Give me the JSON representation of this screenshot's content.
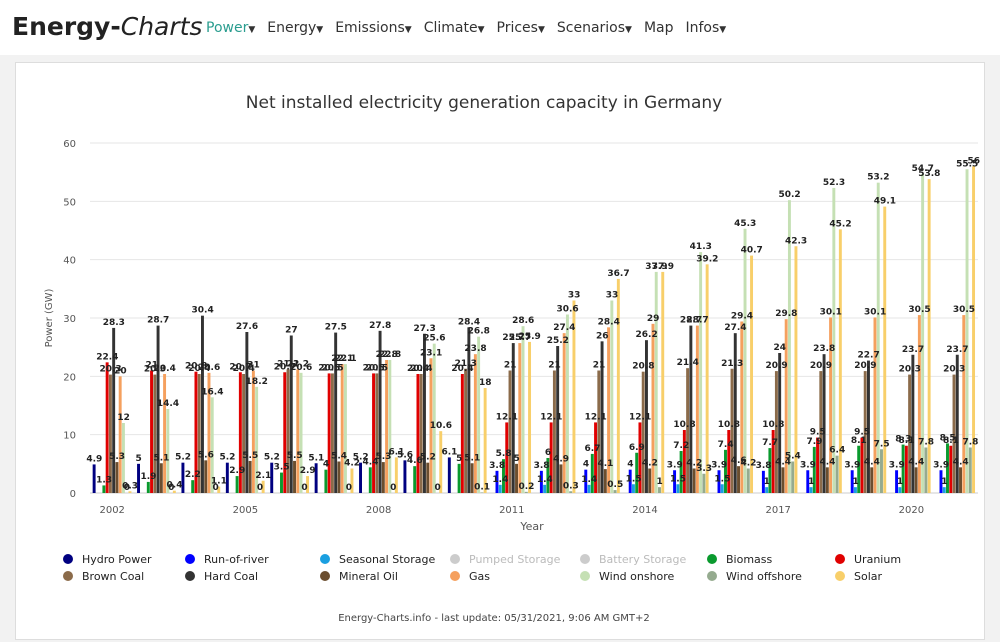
{
  "header": {
    "brand_bold": "Energy-",
    "brand_italic": "Charts",
    "menu": [
      "Power",
      "Energy",
      "Emissions",
      "Climate",
      "Prices",
      "Scenarios",
      "Map",
      "Infos"
    ]
  },
  "chart_data": {
    "type": "bar",
    "title": "Net installed electricity generation capacity in Germany",
    "ylabel": "Power (GW)",
    "xlabel": "Year",
    "footer": "Energy-Charts.info - last update: 05/31/2021, 9:06 AM GMT+2",
    "categories": [
      "2002",
      null,
      null,
      "2005",
      null,
      null,
      "2008",
      null,
      null,
      "2011",
      null,
      null,
      "2014",
      null,
      null,
      "2017",
      null,
      null,
      "2020",
      null
    ],
    "ylim": [
      0,
      60
    ],
    "yticks": [
      0,
      10,
      20,
      30,
      40,
      50,
      60
    ],
    "grid": true,
    "series": [
      {
        "name": "Hydro Power",
        "color": "#000080",
        "values": [
          4.9,
          5.0,
          5.2,
          5.2,
          5.2,
          5.1,
          5.2,
          5.6,
          6.1,
          null,
          null,
          null,
          null,
          null,
          null,
          null,
          null,
          null,
          null,
          null
        ]
      },
      {
        "name": "Run-of-river",
        "color": "#0000ff",
        "values": [
          null,
          null,
          null,
          null,
          null,
          null,
          null,
          null,
          null,
          3.8,
          3.8,
          4.0,
          4.0,
          3.9,
          3.9,
          3.8,
          3.9,
          3.9,
          3.9,
          3.9
        ]
      },
      {
        "name": "Seasonal Storage",
        "color": "#1a9fe0",
        "values": [
          null,
          null,
          null,
          null,
          null,
          null,
          null,
          null,
          null,
          1.4,
          1.4,
          1.4,
          1.5,
          1.5,
          1.5,
          1.0,
          1.0,
          1.0,
          1.0,
          1.0
        ]
      },
      {
        "name": "Pumped Storage",
        "color": "#cccccc",
        "visible": false
      },
      {
        "name": "Battery Storage",
        "color": "#cccccc",
        "visible": false
      },
      {
        "name": "Biomass",
        "color": "#0a9a2e",
        "values": [
          1.3,
          1.9,
          2.2,
          2.9,
          3.5,
          4.0,
          4.4,
          4.6,
          5.0,
          5.8,
          6.0,
          6.7,
          6.9,
          7.2,
          7.4,
          7.7,
          7.9,
          8.1,
          8.3,
          8.5
        ]
      },
      {
        "name": "Uranium",
        "color": "#e00000",
        "values": [
          22.4,
          21.0,
          20.8,
          20.7,
          20.7,
          20.5,
          20.5,
          20.4,
          20.4,
          12.1,
          12.1,
          12.1,
          12.1,
          10.8,
          10.8,
          10.8,
          9.5,
          9.5,
          8.1,
          8.1
        ]
      },
      {
        "name": "Brown Coal",
        "color": "#8b6b4a",
        "values": [
          20.3,
          20.3,
          20.4,
          20.4,
          21.2,
          20.5,
          20.5,
          20.4,
          21.3,
          21.0,
          21.0,
          21.0,
          20.8,
          21.4,
          21.3,
          20.9,
          20.9,
          20.9,
          20.3,
          20.3
        ]
      },
      {
        "name": "Hard Coal",
        "color": "#333333",
        "values": [
          28.3,
          28.7,
          30.4,
          27.6,
          27.0,
          27.5,
          27.8,
          27.3,
          28.4,
          25.7,
          25.2,
          26.0,
          26.2,
          28.7,
          27.4,
          24.0,
          23.8,
          22.7,
          23.7,
          23.7
        ]
      },
      {
        "name": "Mineral Oil",
        "color": "#6b4e2f",
        "values": [
          5.3,
          5.1,
          5.6,
          5.5,
          5.5,
          5.4,
          5.3,
          5.2,
          5.1,
          5.0,
          4.9,
          4.1,
          4.2,
          4.2,
          4.6,
          4.4,
          4.4,
          4.4,
          4.4,
          4.4
        ]
      },
      {
        "name": "Gas",
        "color": "#f5a05e",
        "values": [
          20.0,
          20.4,
          20.6,
          21.0,
          21.2,
          22.1,
          22.8,
          23.1,
          23.8,
          25.7,
          27.4,
          28.4,
          29.0,
          28.7,
          29.4,
          29.8,
          30.1,
          30.1,
          30.5,
          30.5
        ]
      },
      {
        "name": "Wind onshore",
        "color": "#c5e0b4",
        "values": [
          12.0,
          14.4,
          16.4,
          18.2,
          20.6,
          22.1,
          22.8,
          25.6,
          26.8,
          28.6,
          30.6,
          33.0,
          37.9,
          41.3,
          45.3,
          50.2,
          52.3,
          53.2,
          54.7,
          55.5
        ]
      },
      {
        "name": "Wind offshore",
        "color": "#95ab8f",
        "values": [
          0.0,
          0.0,
          0.0,
          0.0,
          0.0,
          0.0,
          0.0,
          0.0,
          0.1,
          0.2,
          0.3,
          0.5,
          1.0,
          3.3,
          4.2,
          5.4,
          6.4,
          7.5,
          7.8,
          7.8
        ]
      },
      {
        "name": "Solar",
        "color": "#f8cf6a",
        "values": [
          0.3,
          0.4,
          1.1,
          2.1,
          2.9,
          4.2,
          6.1,
          10.6,
          18.0,
          25.9,
          33.0,
          36.7,
          37.9,
          39.2,
          40.7,
          42.3,
          45.2,
          49.1,
          53.8,
          56.0
        ]
      }
    ]
  }
}
